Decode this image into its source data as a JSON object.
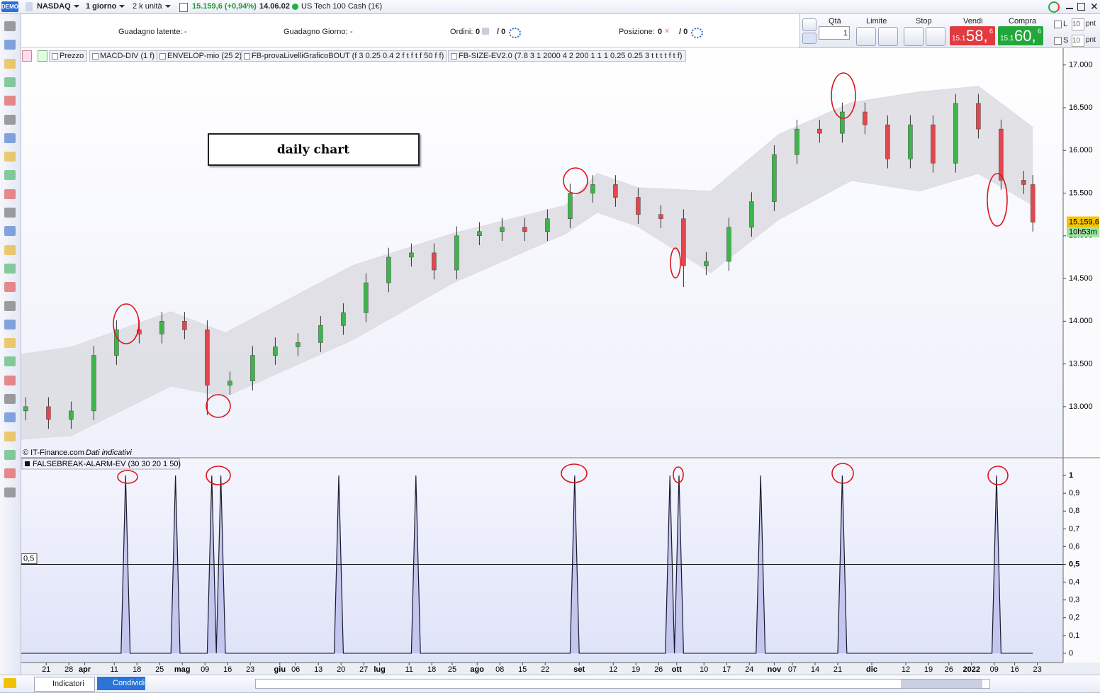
{
  "top_bar": {
    "demo": "DEMO",
    "instrument": "NASDAQ",
    "timeframe": "1 giorno",
    "units": "2 k unità",
    "price_change": "15.159,6 (+0,94%)",
    "time": "14.06.02",
    "market_name": "US Tech 100 Cash (1€)"
  },
  "info_bar": {
    "latent_label": "Guadagno latente:",
    "latent_value": "-",
    "day_label": "Guadagno Giorno:",
    "day_value": "-",
    "orders_label": "Ordini:",
    "orders_value": "0",
    "orders_total": "/ 0",
    "position_label": "Posizione:",
    "position_value": "0",
    "position_total": "/ 0"
  },
  "order_panel": {
    "qty_label": "Qtà",
    "qty_value": "1",
    "limit_label": "Limite",
    "stop_label": "Stop",
    "sell_label": "Vendi",
    "sell_prefix": "15.1",
    "sell_main": "58,",
    "sell_sup": "6",
    "buy_label": "Compra",
    "buy_prefix": "15.1",
    "buy_main": "60,",
    "buy_sup": "6",
    "l_label": "L",
    "l_value": "10",
    "l_unit": "pnt",
    "s_label": "S",
    "s_value": "10",
    "s_unit": "pnt"
  },
  "indicator_tabs": [
    "Prezzo",
    "MACD-DIV (1 f)",
    "ENVELOP-mio (25 2)",
    "FB-provaLivelliGraficoBOUT (f 3 0.25 0.4 2 f t f t f 50 f f)",
    "FB-SIZE-EV2.0 (7.8 3 1 2000 4 2 200 1 1 1 0.25 0.25 3 t t t t f t f)"
  ],
  "bottom_bar": {
    "indicators": "Indicatori",
    "share": "Condividi"
  },
  "chart_data": [
    {
      "type": "candlestick",
      "annotation": "daily chart",
      "copyright": "© IT-Finance.com",
      "disclaimer": "Dati indicativi",
      "last_price_label": "15.159,6",
      "timer_label": "10h53m",
      "up_color": "#3db54a",
      "down_color": "#e2474f",
      "x": [
        1,
        6,
        11,
        16,
        21,
        26,
        31,
        36,
        41,
        46,
        51,
        56,
        61,
        66,
        71,
        76,
        81,
        86,
        91,
        96,
        101,
        106,
        111,
        116,
        121,
        126,
        131,
        136,
        141,
        146,
        151,
        156,
        161,
        166,
        171,
        176,
        181,
        186,
        191,
        196,
        201,
        206,
        211,
        216,
        221,
        223
      ],
      "open": [
        12950,
        13000,
        12850,
        12950,
        13600,
        13900,
        13850,
        14000,
        13900,
        13250,
        13300,
        13600,
        13700,
        13750,
        13950,
        14100,
        14450,
        14750,
        14800,
        14600,
        15000,
        15050,
        15100,
        15050,
        15200,
        15500,
        15600,
        15450,
        15250,
        15200,
        14650,
        14700,
        15100,
        15400,
        15950,
        16250,
        16200,
        16450,
        16300,
        15900,
        16300,
        15850,
        16550,
        16250,
        15650,
        15600
      ],
      "high": [
        13110,
        13110,
        13060,
        13710,
        14010,
        14010,
        14110,
        14110,
        14010,
        13410,
        13710,
        13810,
        13860,
        14060,
        14210,
        14560,
        14860,
        14910,
        14910,
        15110,
        15160,
        15210,
        15210,
        15310,
        15610,
        15710,
        15710,
        15560,
        15360,
        15310,
        14810,
        15210,
        15510,
        16060,
        16360,
        16360,
        16560,
        16560,
        16410,
        16410,
        16410,
        16660,
        16660,
        16360,
        15760,
        15710
      ],
      "low": [
        12840,
        12740,
        12740,
        12840,
        13490,
        13740,
        13740,
        13790,
        12900,
        13140,
        13190,
        13490,
        13590,
        13640,
        13840,
        13990,
        14340,
        14640,
        14490,
        14490,
        14890,
        14940,
        14940,
        14940,
        15090,
        15390,
        15340,
        15140,
        15090,
        14400,
        14540,
        14590,
        14990,
        15290,
        15840,
        16090,
        16090,
        16190,
        15790,
        15790,
        15740,
        15740,
        16140,
        15540,
        15490,
        15050
      ],
      "close": [
        13000,
        12850,
        12950,
        13600,
        13900,
        13850,
        14000,
        13900,
        13250,
        13300,
        13600,
        13700,
        13750,
        13950,
        14100,
        14450,
        14750,
        14800,
        14600,
        15000,
        15050,
        15100,
        15050,
        15200,
        15500,
        15600,
        15450,
        15250,
        15200,
        14650,
        14700,
        15100,
        15400,
        15950,
        16250,
        16200,
        16450,
        16300,
        15900,
        16300,
        15850,
        16550,
        16250,
        15650,
        15600,
        15159.6
      ],
      "envelope": {
        "color": "#dcdce2",
        "x": [
          0,
          11,
          33,
          45,
          73,
          95,
          120,
          127,
          136,
          152,
          167,
          183,
          198,
          211,
          223
        ],
        "upper": [
          13614,
          13697,
          14112,
          13863,
          14651,
          15025,
          15357,
          15730,
          15564,
          15523,
          16187,
          16560,
          16685,
          16751,
          16270
        ],
        "lower": [
          12618,
          12660,
          13240,
          13116,
          13780,
          14444,
          15025,
          15274,
          15108,
          14568,
          15191,
          15647,
          15523,
          15730,
          15357
        ]
      },
      "xlim": [
        0,
        230
      ],
      "ylim": [
        12410,
        17180
      ],
      "yticks": [
        {
          "value": 13000,
          "label": "13.000"
        },
        {
          "value": 13500,
          "label": "13.500"
        },
        {
          "value": 14000,
          "label": "14.000"
        },
        {
          "value": 14500,
          "label": "14.500"
        },
        {
          "value": 15000,
          "label": "15.000"
        },
        {
          "value": 15500,
          "label": "15.500"
        },
        {
          "value": 16000,
          "label": "16.000"
        },
        {
          "value": 16500,
          "label": "16.500"
        },
        {
          "value": 17000,
          "label": "17.000"
        }
      ]
    },
    {
      "type": "line",
      "title": "FALSEBREAK-ALARM-EV (30 30 20 1 50)",
      "color": "#1a1a2e",
      "fill": "#c3c6ee",
      "x": [
        0,
        22,
        23,
        24,
        33,
        34,
        35,
        41,
        42,
        43,
        44,
        45,
        69,
        70,
        71,
        86,
        87,
        88,
        121,
        122,
        123,
        142,
        143,
        144,
        145,
        146,
        162,
        163,
        164,
        180,
        181,
        182,
        214,
        215,
        216,
        223
      ],
      "values": [
        0,
        0,
        1,
        0,
        0,
        1,
        0,
        0,
        1,
        0,
        1,
        0,
        0,
        1,
        0,
        0,
        1,
        0,
        0,
        1,
        0,
        0,
        1,
        0,
        1,
        0,
        0,
        1,
        0,
        0,
        1,
        0,
        0,
        1,
        0,
        0
      ],
      "levels": [
        {
          "value": 0.5,
          "label": "0,5"
        }
      ],
      "xlim": [
        0,
        230
      ],
      "ylim": [
        -0.052,
        1.1
      ],
      "yticks": [
        0,
        {
          "value": 0.1,
          "label": "0,1"
        },
        {
          "value": 0.2,
          "label": "0,2"
        },
        {
          "value": 0.3,
          "label": "0,3"
        },
        {
          "value": 0.4,
          "label": "0,4"
        },
        {
          "value": 0.5,
          "label": "0,5"
        },
        {
          "value": 0.6,
          "label": "0,6"
        },
        {
          "value": 0.7,
          "label": "0,7"
        },
        {
          "value": 0.8,
          "label": "0,8"
        },
        {
          "value": 0.9,
          "label": "0,9"
        },
        1
      ],
      "xticks": [
        {
          "value": 5.5,
          "label": "21"
        },
        {
          "value": 10.5,
          "label": "28"
        },
        {
          "value": 14,
          "label": "apr"
        },
        {
          "value": 20.5,
          "label": "11"
        },
        {
          "value": 25.5,
          "label": "18"
        },
        {
          "value": 30.5,
          "label": "25"
        },
        {
          "value": 35.5,
          "label": "mag"
        },
        {
          "value": 40.5,
          "label": "09"
        },
        {
          "value": 45.5,
          "label": "16"
        },
        {
          "value": 50.5,
          "label": "23"
        },
        {
          "value": 57,
          "label": "giu"
        },
        {
          "value": 60.5,
          "label": "06"
        },
        {
          "value": 65.5,
          "label": "13"
        },
        {
          "value": 70.5,
          "label": "20"
        },
        {
          "value": 75.5,
          "label": "27"
        },
        {
          "value": 79,
          "label": "lug"
        },
        {
          "value": 85.5,
          "label": "11"
        },
        {
          "value": 90.5,
          "label": "18"
        },
        {
          "value": 95,
          "label": "25"
        },
        {
          "value": 100.5,
          "label": "ago"
        },
        {
          "value": 105.5,
          "label": "08"
        },
        {
          "value": 110.5,
          "label": "15"
        },
        {
          "value": 115.5,
          "label": "22"
        },
        {
          "value": 123,
          "label": "set"
        },
        {
          "value": 130.5,
          "label": "12"
        },
        {
          "value": 135.5,
          "label": "19"
        },
        {
          "value": 140.5,
          "label": "26"
        },
        {
          "value": 144.5,
          "label": "ott"
        },
        {
          "value": 150.5,
          "label": "10"
        },
        {
          "value": 155.5,
          "label": "17"
        },
        {
          "value": 160.5,
          "label": "24"
        },
        {
          "value": 166,
          "label": "nov"
        },
        {
          "value": 170,
          "label": "07"
        },
        {
          "value": 175,
          "label": "14"
        },
        {
          "value": 180,
          "label": "21"
        },
        {
          "value": 187.5,
          "label": "dic"
        },
        {
          "value": 195,
          "label": "12"
        },
        {
          "value": 200,
          "label": "19"
        },
        {
          "value": 204.5,
          "label": "26"
        },
        {
          "value": 209.5,
          "label": "2022"
        },
        {
          "value": 214.5,
          "label": "09"
        },
        {
          "value": 219,
          "label": "16"
        },
        {
          "value": 224,
          "label": "23"
        }
      ]
    }
  ]
}
